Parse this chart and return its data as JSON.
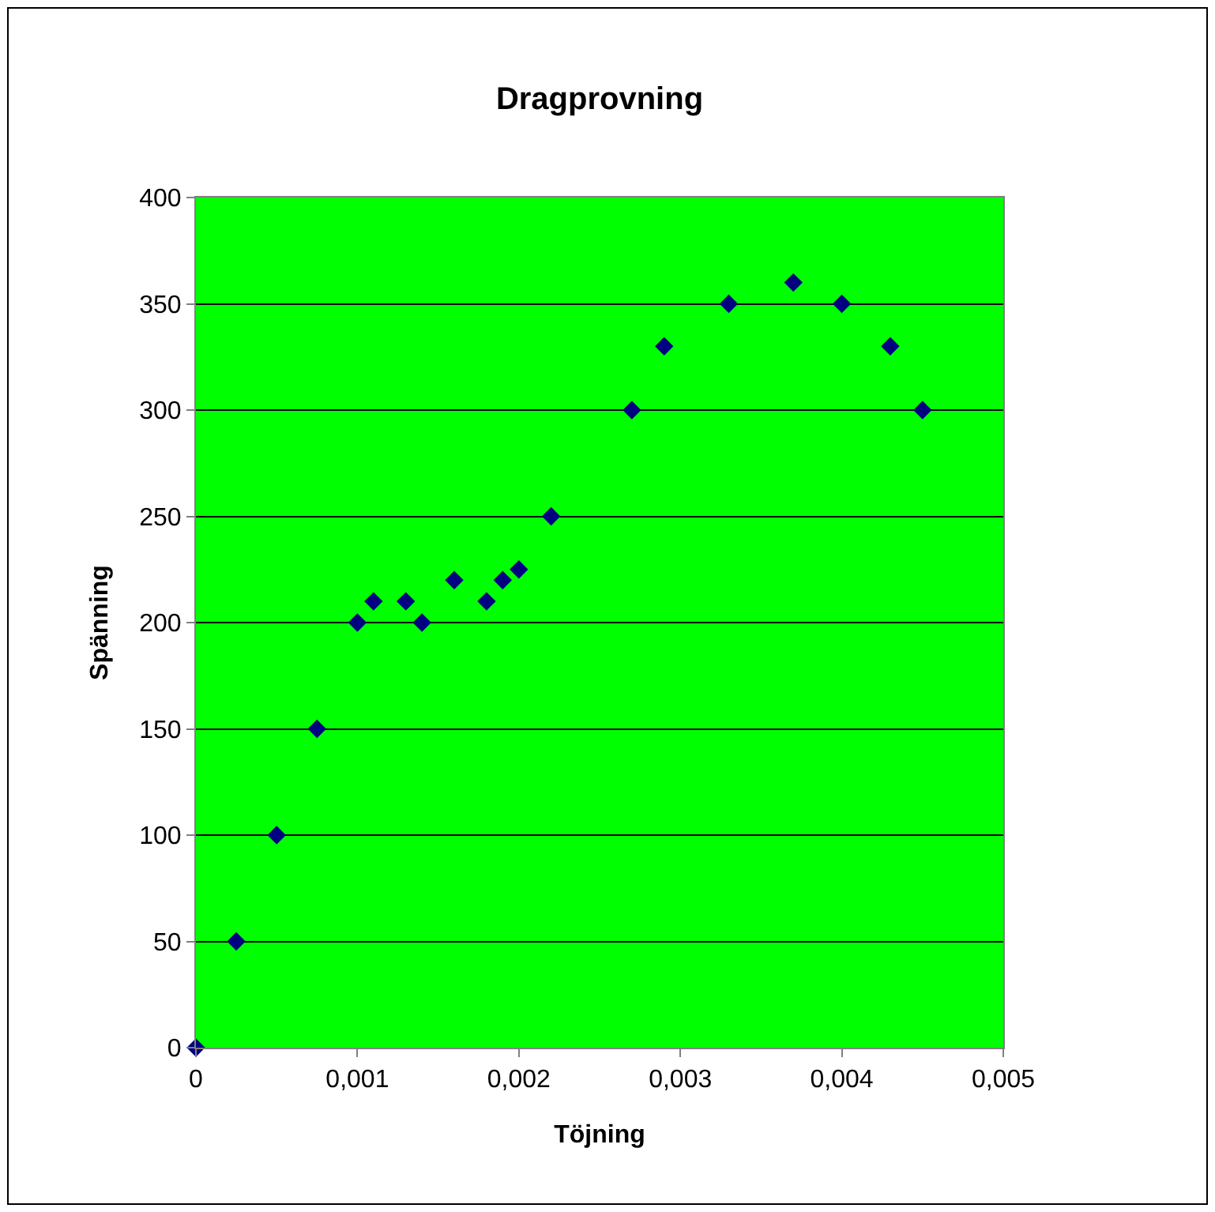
{
  "chart_data": {
    "type": "scatter",
    "title": "Dragprovning",
    "xlabel": "Töjning",
    "ylabel": "Spänning",
    "x": [
      0,
      0.00025,
      0.0005,
      0.00075,
      0.001,
      0.0011,
      0.0013,
      0.0014,
      0.0016,
      0.0018,
      0.0019,
      0.002,
      0.0022,
      0.0027,
      0.0029,
      0.0033,
      0.0037,
      0.004,
      0.0043,
      0.0045
    ],
    "series": [
      {
        "color": "#000080",
        "values": [
          0,
          50,
          100,
          150,
          200,
          210,
          210,
          200,
          220,
          210,
          220,
          225,
          250,
          300,
          330,
          350,
          360,
          350,
          330,
          300
        ]
      }
    ],
    "xlim": [
      0,
      0.005
    ],
    "xticks": [
      0,
      {
        "value": 0.001,
        "label": "0,001"
      },
      {
        "value": 0.002,
        "label": "0,002"
      },
      {
        "value": 0.003,
        "label": "0,003"
      },
      {
        "value": 0.004,
        "label": "0,004"
      },
      {
        "value": 0.005,
        "label": "0,005"
      }
    ],
    "ylim": [
      0,
      400
    ],
    "yticks": [
      0,
      50,
      100,
      150,
      200,
      250,
      300,
      350,
      400
    ],
    "grid": "y",
    "marker": "diamond"
  }
}
